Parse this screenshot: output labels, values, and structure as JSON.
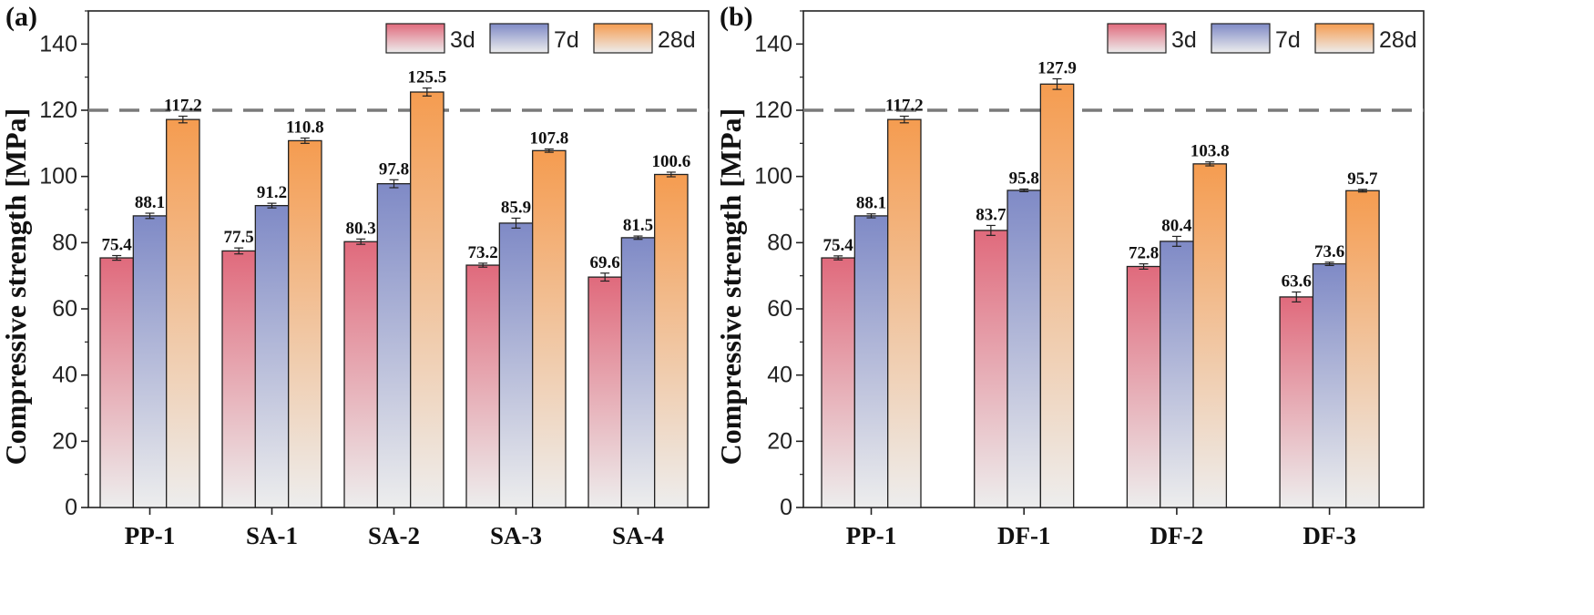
{
  "colors": {
    "s3d_top": "#E06A7C",
    "s3d_bot": "#EDEDED",
    "s7d_top": "#7F8AC6",
    "s7d_bot": "#EDEDED",
    "s28d_top": "#F59C50",
    "s28d_bot": "#EDEDED",
    "ref_line": "#7a7a7a"
  },
  "chart_data": [
    {
      "type": "bar",
      "panel_label": "(a)",
      "ylabel": "Compressive strength [MPa]",
      "ylim": [
        0,
        150
      ],
      "yticks": [
        0,
        20,
        40,
        60,
        80,
        100,
        120,
        140
      ],
      "reference_line": 120,
      "legend": [
        "3d",
        "7d",
        "28d"
      ],
      "categories": [
        "PP-1",
        "SA-1",
        "SA-2",
        "SA-3",
        "SA-4"
      ],
      "series": [
        {
          "name": "3d",
          "values": [
            75.4,
            77.5,
            80.3,
            73.2,
            69.6
          ],
          "errors": [
            0.7,
            0.9,
            0.8,
            0.6,
            1.2
          ],
          "labels": [
            "75.4",
            "77.5",
            "80.3",
            "73.2",
            "69.6"
          ]
        },
        {
          "name": "7d",
          "values": [
            88.1,
            91.2,
            97.8,
            85.9,
            81.5
          ],
          "errors": [
            0.8,
            0.7,
            1.2,
            1.5,
            0.5
          ],
          "labels": [
            "88.1",
            "91.2",
            "97.8",
            "85.9",
            "81.5"
          ]
        },
        {
          "name": "28d",
          "values": [
            117.2,
            110.8,
            125.5,
            107.8,
            100.6
          ],
          "errors": [
            1.0,
            0.8,
            1.2,
            0.5,
            0.7
          ],
          "labels": [
            "117.2",
            "110.8",
            "125.5",
            "107.8",
            "100.6"
          ]
        }
      ]
    },
    {
      "type": "bar",
      "panel_label": "(b)",
      "ylabel": "Compressive strength [MPa]",
      "ylim": [
        0,
        150
      ],
      "yticks": [
        0,
        20,
        40,
        60,
        80,
        100,
        120,
        140
      ],
      "reference_line": 120,
      "legend": [
        "3d",
        "7d",
        "28d"
      ],
      "categories": [
        "PP-1",
        "DF-1",
        "DF-2",
        "DF-3"
      ],
      "series": [
        {
          "name": "3d",
          "values": [
            75.4,
            83.7,
            72.8,
            63.6
          ],
          "errors": [
            0.6,
            1.5,
            0.8,
            1.5
          ],
          "labels": [
            "75.4",
            "83.7",
            "72.8",
            "63.6"
          ]
        },
        {
          "name": "7d",
          "values": [
            88.1,
            95.8,
            80.4,
            73.6
          ],
          "errors": [
            0.6,
            0.4,
            1.5,
            0.5
          ],
          "labels": [
            "88.1",
            "95.8",
            "80.4",
            "73.6"
          ]
        },
        {
          "name": "28d",
          "values": [
            117.2,
            127.9,
            103.8,
            95.7
          ],
          "errors": [
            1.0,
            1.6,
            0.6,
            0.4
          ],
          "labels": [
            "117.2",
            "127.9",
            "103.8",
            "95.7"
          ]
        }
      ]
    }
  ]
}
